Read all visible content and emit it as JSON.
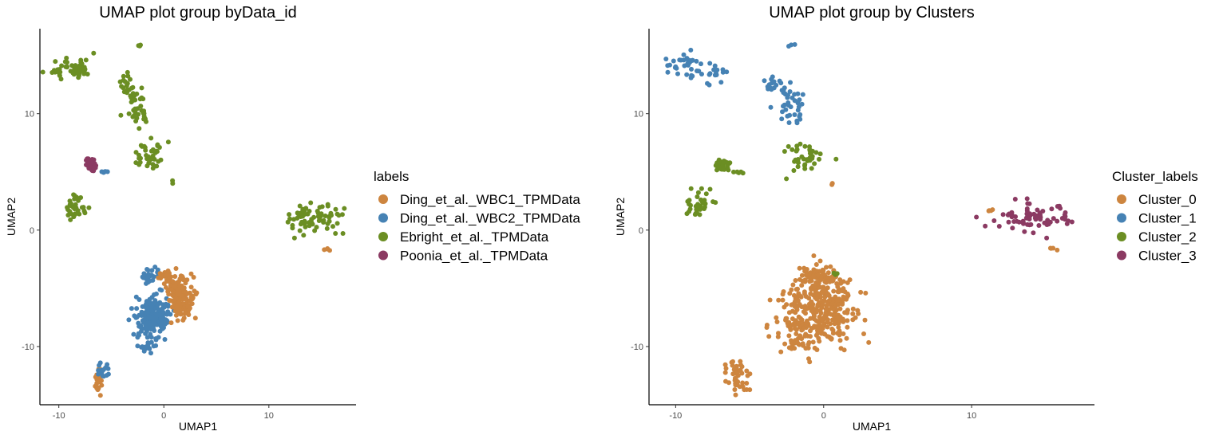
{
  "colors": {
    "orange": "#CD853F",
    "blue": "#4682B4",
    "green": "#6B8E23",
    "maroon": "#8B3A62"
  },
  "chart_data": [
    {
      "type": "scatter",
      "title": "UMAP plot group byData_id",
      "xlabel": "UMAP1",
      "ylabel": "UMAP2",
      "xlim": [
        -11.8,
        18.3
      ],
      "ylim": [
        -15,
        17.3
      ],
      "xticks": [
        -10,
        0,
        10
      ],
      "yticks": [
        -10,
        0,
        10
      ],
      "grid": false,
      "legend": {
        "title": "labels",
        "placement": "right",
        "entries": [
          {
            "name": "Ding_et_al._WBC1_TPMData",
            "color": "#CD853F"
          },
          {
            "name": "Ding_et_al._WBC2_TPMData",
            "color": "#4682B4"
          },
          {
            "name": "Ebright_et_al._TPMData",
            "color": "#6B8E23"
          },
          {
            "name": "Poonia_et_al._TPMData",
            "color": "#8B3A62"
          }
        ]
      },
      "clusters": [
        {
          "series": "Ebright_et_al._TPMData",
          "cx": -9.0,
          "cy": 14.0,
          "sx": 1.0,
          "sy": 0.6,
          "n": 40,
          "seed": 11
        },
        {
          "series": "Ebright_et_al._TPMData",
          "cx": -7.5,
          "cy": 13.5,
          "sx": 0.5,
          "sy": 0.3,
          "n": 10,
          "seed": 12
        },
        {
          "series": "Ebright_et_al._TPMData",
          "cx": -3.5,
          "cy": 12.5,
          "sx": 0.4,
          "sy": 0.5,
          "n": 16,
          "seed": 13
        },
        {
          "series": "Ebright_et_al._TPMData",
          "cx": -2.3,
          "cy": 11.0,
          "sx": 0.5,
          "sy": 0.7,
          "n": 26,
          "seed": 14
        },
        {
          "series": "Ebright_et_al._TPMData",
          "cx": -2.2,
          "cy": 9.7,
          "sx": 0.6,
          "sy": 0.3,
          "n": 10,
          "seed": 15
        },
        {
          "series": "Ebright_et_al._TPMData",
          "cx": -2.2,
          "cy": 15.9,
          "sx": 0.1,
          "sy": 0.1,
          "n": 3,
          "seed": 16
        },
        {
          "series": "Ebright_et_al._TPMData",
          "cx": -1.4,
          "cy": 6.3,
          "sx": 0.7,
          "sy": 0.6,
          "n": 40,
          "seed": 17
        },
        {
          "series": "Ebright_et_al._TPMData",
          "cx": 0.7,
          "cy": 4.1,
          "sx": 0.1,
          "sy": 0.1,
          "n": 2,
          "seed": 18
        },
        {
          "series": "Ebright_et_al._TPMData",
          "cx": -8.5,
          "cy": 2.2,
          "sx": 0.5,
          "sy": 0.55,
          "n": 34,
          "seed": 19
        },
        {
          "series": "Ebright_et_al._TPMData",
          "cx": 14.2,
          "cy": 1.0,
          "sx": 1.35,
          "sy": 0.7,
          "n": 72,
          "seed": 20
        },
        {
          "series": "Poonia_et_al._TPMData",
          "cx": -6.9,
          "cy": 5.6,
          "sx": 0.3,
          "sy": 0.3,
          "n": 34,
          "seed": 21
        },
        {
          "series": "Ding_et_al._WBC2_TPMData",
          "cx": -5.7,
          "cy": 5.0,
          "sx": 0.15,
          "sy": 0.1,
          "n": 5,
          "seed": 22
        },
        {
          "series": "Ding_et_al._WBC1_TPMData",
          "cx": 15.5,
          "cy": -1.6,
          "sx": 0.2,
          "sy": 0.08,
          "n": 4,
          "seed": 23
        },
        {
          "series": "Ding_et_al._WBC2_TPMData",
          "cx": -1.2,
          "cy": -7.6,
          "sx": 0.8,
          "sy": 1.0,
          "n": 210,
          "seed": 24
        },
        {
          "series": "Ding_et_al._WBC2_TPMData",
          "cx": -1.3,
          "cy": -4.0,
          "sx": 0.4,
          "sy": 0.3,
          "n": 26,
          "seed": 25
        },
        {
          "series": "Ding_et_al._WBC2_TPMData",
          "cx": -1.7,
          "cy": -9.9,
          "sx": 0.4,
          "sy": 0.25,
          "n": 14,
          "seed": 26
        },
        {
          "series": "Ding_et_al._WBC1_TPMData",
          "cx": 1.5,
          "cy": -5.8,
          "sx": 0.6,
          "sy": 0.9,
          "n": 150,
          "seed": 27
        },
        {
          "series": "Ding_et_al._WBC1_TPMData",
          "cx": 0.4,
          "cy": -4.0,
          "sx": 0.4,
          "sy": 0.3,
          "n": 26,
          "seed": 28
        },
        {
          "series": "Ding_et_al._WBC1_TPMData",
          "cx": -6.3,
          "cy": -12.9,
          "sx": 0.25,
          "sy": 0.5,
          "n": 26,
          "seed": 29
        },
        {
          "series": "Ding_et_al._WBC2_TPMData",
          "cx": -5.8,
          "cy": -12.0,
          "sx": 0.3,
          "sy": 0.4,
          "n": 18,
          "seed": 30
        }
      ]
    },
    {
      "type": "scatter",
      "title": "UMAP plot group by Clusters",
      "xlabel": "UMAP1",
      "ylabel": "UMAP2",
      "xlim": [
        -11.8,
        18.3
      ],
      "ylim": [
        -15,
        17.3
      ],
      "xticks": [
        -10,
        0,
        10
      ],
      "yticks": [
        -10,
        0,
        10
      ],
      "grid": false,
      "legend": {
        "title": "Cluster_labels",
        "placement": "right",
        "entries": [
          {
            "name": "Cluster_0",
            "color": "#CD853F"
          },
          {
            "name": "Cluster_1",
            "color": "#4682B4"
          },
          {
            "name": "Cluster_2",
            "color": "#6B8E23"
          },
          {
            "name": "Cluster_3",
            "color": "#8B3A62"
          }
        ]
      },
      "clusters": [
        {
          "series": "Cluster_1",
          "cx": -9.0,
          "cy": 14.0,
          "sx": 1.0,
          "sy": 0.6,
          "n": 40,
          "seed": 41
        },
        {
          "series": "Cluster_1",
          "cx": -7.5,
          "cy": 13.5,
          "sx": 0.5,
          "sy": 0.3,
          "n": 10,
          "seed": 42
        },
        {
          "series": "Cluster_1",
          "cx": -3.5,
          "cy": 12.5,
          "sx": 0.4,
          "sy": 0.5,
          "n": 16,
          "seed": 43
        },
        {
          "series": "Cluster_1",
          "cx": -2.3,
          "cy": 11.0,
          "sx": 0.5,
          "sy": 0.7,
          "n": 26,
          "seed": 44
        },
        {
          "series": "Cluster_1",
          "cx": -2.2,
          "cy": 9.7,
          "sx": 0.6,
          "sy": 0.3,
          "n": 10,
          "seed": 45
        },
        {
          "series": "Cluster_1",
          "cx": -2.2,
          "cy": 15.9,
          "sx": 0.1,
          "sy": 0.1,
          "n": 3,
          "seed": 46
        },
        {
          "series": "Cluster_2",
          "cx": -1.4,
          "cy": 6.3,
          "sx": 0.7,
          "sy": 0.6,
          "n": 40,
          "seed": 47
        },
        {
          "series": "Cluster_0",
          "cx": 0.7,
          "cy": 4.1,
          "sx": 0.1,
          "sy": 0.1,
          "n": 2,
          "seed": 48
        },
        {
          "series": "Cluster_2",
          "cx": -8.5,
          "cy": 2.2,
          "sx": 0.5,
          "sy": 0.55,
          "n": 34,
          "seed": 49
        },
        {
          "series": "Cluster_3",
          "cx": 14.2,
          "cy": 1.0,
          "sx": 1.35,
          "sy": 0.7,
          "n": 72,
          "seed": 50
        },
        {
          "series": "Cluster_2",
          "cx": -6.9,
          "cy": 5.6,
          "sx": 0.3,
          "sy": 0.3,
          "n": 34,
          "seed": 51
        },
        {
          "series": "Cluster_2",
          "cx": -5.7,
          "cy": 5.0,
          "sx": 0.15,
          "sy": 0.1,
          "n": 5,
          "seed": 52
        },
        {
          "series": "Cluster_0",
          "cx": 15.5,
          "cy": -1.6,
          "sx": 0.2,
          "sy": 0.08,
          "n": 4,
          "seed": 53
        },
        {
          "series": "Cluster_0",
          "cx": 11.2,
          "cy": 1.7,
          "sx": 0.15,
          "sy": 0.08,
          "n": 4,
          "seed": 54
        },
        {
          "series": "Cluster_0",
          "cx": -0.4,
          "cy": -6.8,
          "sx": 1.3,
          "sy": 1.6,
          "n": 360,
          "seed": 55
        },
        {
          "series": "Cluster_0",
          "cx": -0.3,
          "cy": -4.0,
          "sx": 0.7,
          "sy": 0.3,
          "n": 40,
          "seed": 56
        },
        {
          "series": "Cluster_0",
          "cx": -2.0,
          "cy": -9.8,
          "sx": 0.4,
          "sy": 0.3,
          "n": 14,
          "seed": 57
        },
        {
          "series": "Cluster_0",
          "cx": -6.0,
          "cy": -12.5,
          "sx": 0.4,
          "sy": 0.6,
          "n": 44,
          "seed": 58
        },
        {
          "series": "Cluster_2",
          "cx": 0.8,
          "cy": -3.8,
          "sx": 0.1,
          "sy": 0.1,
          "n": 3,
          "seed": 59
        }
      ]
    }
  ]
}
